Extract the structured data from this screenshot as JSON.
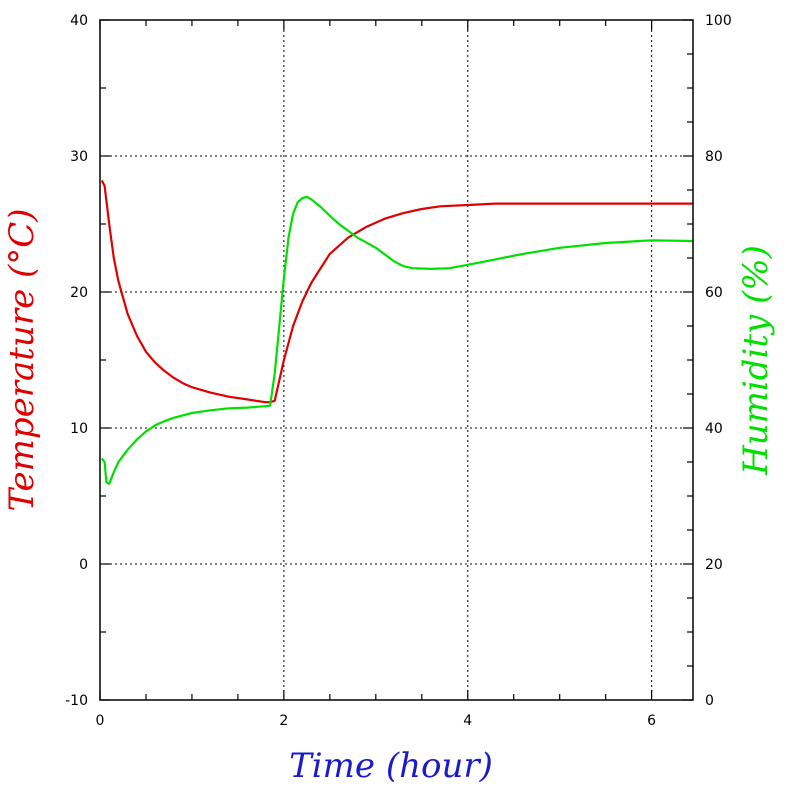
{
  "chart_data": {
    "type": "line",
    "xlabel": "Time (hour)",
    "ylabel_left": "Temperature (°C)",
    "ylabel_right": "Humidity (%)",
    "xlim": [
      0,
      6.45
    ],
    "ylim_left": [
      -10,
      40
    ],
    "ylim_right": [
      0,
      100
    ],
    "x_ticks": [
      0,
      2,
      4,
      6
    ],
    "x_tick_labels": [
      "0",
      "2",
      "4",
      "6"
    ],
    "y_left_ticks": [
      -10,
      0,
      10,
      20,
      30,
      40
    ],
    "y_left_tick_labels": [
      "-10",
      "0",
      "10",
      "20",
      "30",
      "40"
    ],
    "y_right_ticks": [
      0,
      20,
      40,
      60,
      80,
      100
    ],
    "y_right_tick_labels": [
      "0",
      "20",
      "40",
      "60",
      "80",
      "100"
    ],
    "grid": true,
    "colors": {
      "temperature": "#e00000",
      "humidity": "#00e000",
      "xlabel": "#1a1acc",
      "grid": "#000000"
    },
    "series": [
      {
        "axis": "left",
        "color": "#e00000",
        "x": [
          0.02,
          0.05,
          0.1,
          0.15,
          0.2,
          0.3,
          0.4,
          0.5,
          0.6,
          0.7,
          0.8,
          0.9,
          1.0,
          1.2,
          1.4,
          1.6,
          1.8,
          1.85,
          1.9,
          2.0,
          2.1,
          2.2,
          2.3,
          2.5,
          2.7,
          2.9,
          3.1,
          3.3,
          3.5,
          3.7,
          4.0,
          4.3,
          4.6,
          5.0,
          5.5,
          6.0,
          6.45
        ],
        "y": [
          28.2,
          27.8,
          25.0,
          22.5,
          20.8,
          18.4,
          16.8,
          15.6,
          14.8,
          14.2,
          13.7,
          13.3,
          13.0,
          12.6,
          12.3,
          12.1,
          11.9,
          11.9,
          12.0,
          15.0,
          17.5,
          19.3,
          20.7,
          22.8,
          24.0,
          24.8,
          25.4,
          25.8,
          26.1,
          26.3,
          26.4,
          26.5,
          26.5,
          26.5,
          26.5,
          26.5,
          26.5
        ]
      },
      {
        "axis": "right",
        "color": "#00e000",
        "x": [
          0.02,
          0.05,
          0.07,
          0.1,
          0.15,
          0.2,
          0.3,
          0.4,
          0.5,
          0.6,
          0.7,
          0.8,
          1.0,
          1.2,
          1.4,
          1.6,
          1.8,
          1.85,
          1.9,
          1.95,
          2.0,
          2.05,
          2.1,
          2.15,
          2.2,
          2.25,
          2.3,
          2.4,
          2.5,
          2.6,
          2.8,
          3.0,
          3.1,
          3.2,
          3.3,
          3.4,
          3.6,
          3.8,
          4.0,
          4.3,
          4.6,
          5.0,
          5.5,
          6.0,
          6.45
        ],
        "y": [
          35.5,
          35.0,
          32.0,
          31.8,
          33.5,
          35.0,
          36.8,
          38.3,
          39.5,
          40.4,
          41.0,
          41.5,
          42.2,
          42.6,
          42.9,
          43.0,
          43.2,
          43.3,
          48.0,
          55.0,
          62.0,
          68.0,
          71.5,
          73.2,
          73.8,
          74.0,
          73.6,
          72.5,
          71.2,
          70.0,
          68.0,
          66.5,
          65.5,
          64.5,
          63.8,
          63.5,
          63.4,
          63.5,
          64.0,
          64.8,
          65.6,
          66.5,
          67.2,
          67.6,
          67.5
        ]
      }
    ]
  }
}
